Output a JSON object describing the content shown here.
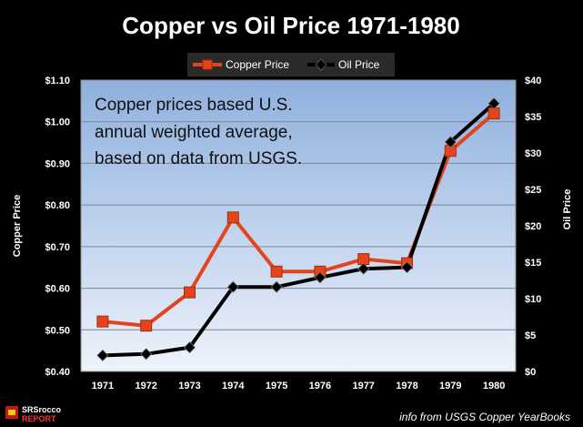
{
  "chart_data": {
    "type": "line",
    "title": "Copper vs Oil Price 1971-1980",
    "categories": [
      "1971",
      "1972",
      "1973",
      "1974",
      "1975",
      "1976",
      "1977",
      "1978",
      "1979",
      "1980"
    ],
    "series": [
      {
        "name": "Copper Price",
        "axis": "left",
        "color": "#e2451e",
        "values": [
          0.52,
          0.51,
          0.59,
          0.77,
          0.64,
          0.64,
          0.67,
          0.66,
          0.93,
          1.02
        ]
      },
      {
        "name": "Oil Price",
        "axis": "right",
        "color": "#000000",
        "values": [
          2.2,
          2.4,
          3.3,
          11.6,
          11.6,
          12.9,
          14.1,
          14.3,
          31.5,
          36.8
        ]
      }
    ],
    "y_left": {
      "label": "Copper  Price",
      "min": 0.4,
      "max": 1.1,
      "ticks": [
        "$0.40",
        "$0.50",
        "$0.60",
        "$0.70",
        "$0.80",
        "$0.90",
        "$1.00",
        "$1.10"
      ]
    },
    "y_right": {
      "label": "Oil  Price",
      "min": 0,
      "max": 40,
      "ticks": [
        "$0",
        "$5",
        "$10",
        "$15",
        "$20",
        "$25",
        "$30",
        "$35",
        "$40"
      ]
    },
    "grid": true,
    "legend_position": "top-center",
    "annotation": [
      "Copper prices based U.S.",
      "annual weighted average,",
      "based on data from USGS."
    ]
  },
  "source_note": "info from USGS Copper YearBooks",
  "logo": {
    "text_top": "SRSrocco",
    "text_bottom": "REPORT"
  },
  "colors": {
    "background": "#000000",
    "plot_top": "#8fb0de",
    "plot_bottom": "#e8effa",
    "copper": "#e2451e",
    "oil": "#000000"
  }
}
